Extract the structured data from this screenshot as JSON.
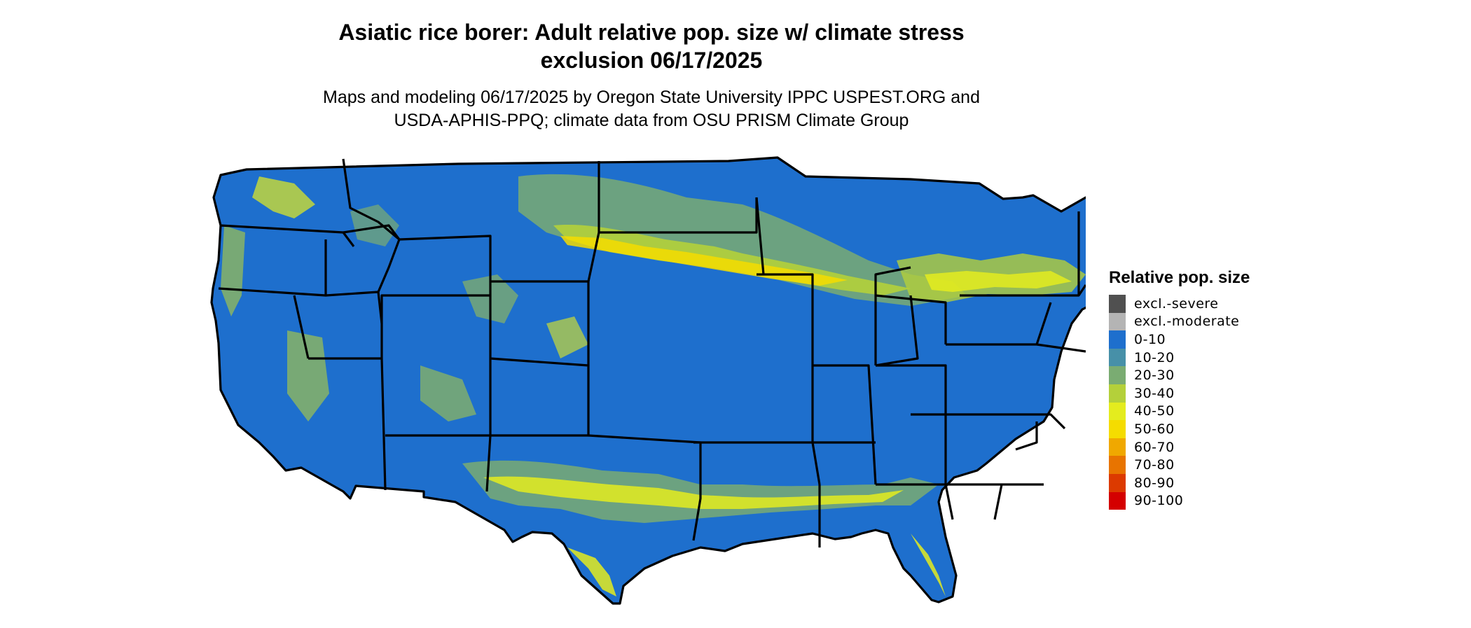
{
  "title": {
    "line1": "Asiatic rice borer: Adult relative pop. size w/ climate stress",
    "line2": "exclusion 06/17/2025"
  },
  "subtitle": {
    "line1": "Maps and modeling 06/17/2025 by Oregon State University IPPC USPEST.ORG and",
    "line2": "USDA-APHIS-PPQ; climate data from OSU PRISM Climate Group"
  },
  "legend": {
    "title": "Relative pop. size",
    "items": [
      {
        "label": "excl.-severe",
        "color": "#505050"
      },
      {
        "label": "excl.-moderate",
        "color": "#b4b4b4"
      },
      {
        "label": "0-10",
        "color": "#1e6fcd"
      },
      {
        "label": "10-20",
        "color": "#4790a8"
      },
      {
        "label": "20-30",
        "color": "#7aac72"
      },
      {
        "label": "30-40",
        "color": "#b4d03a"
      },
      {
        "label": "40-50",
        "color": "#e4ec1e"
      },
      {
        "label": "50-60",
        "color": "#f5dc00"
      },
      {
        "label": "60-70",
        "color": "#f0a800"
      },
      {
        "label": "70-80",
        "color": "#e87400"
      },
      {
        "label": "80-90",
        "color": "#dc3a00"
      },
      {
        "label": "90-100",
        "color": "#d40000"
      }
    ]
  },
  "map": {
    "region": "contiguous United States",
    "base_color": "#1e6fcd",
    "border_color": "#000000"
  }
}
